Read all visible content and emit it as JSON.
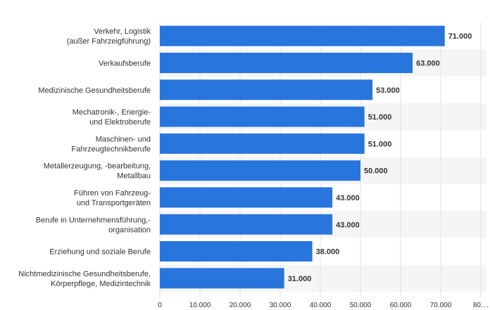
{
  "chart_data": {
    "type": "bar",
    "orientation": "horizontal",
    "title": "",
    "xlabel": "",
    "ylabel": "",
    "xlim": [
      0,
      80000
    ],
    "grid": true,
    "bar_color": "#2876dd",
    "stripe_color": "#f5f5f5",
    "grid_color": "#e2e2e2",
    "categories": [
      [
        "Verkehr, Logistik",
        "(außer Fahrzeigführung)"
      ],
      [
        "Verkaufsberufe"
      ],
      [
        "Medizinische Gesundheitsberufe"
      ],
      [
        "Mechatronik-, Energie-",
        "und Elektroberufe"
      ],
      [
        "Maschinen- und",
        "Fahrzeugtechnikberufe"
      ],
      [
        "Metallerzeugung, -bearbeitung,",
        "Metallbau"
      ],
      [
        "Führen von Fahrzeug-",
        "und Transportgeräten"
      ],
      [
        "Berufe in Unternehmensführung,-",
        "organisation"
      ],
      [
        "Erziehung und soziale Berufe"
      ],
      [
        "Nichtmedizinische Gesundheitsberufe,",
        "Körperpflege, Medizintechnik"
      ]
    ],
    "values": [
      71000,
      63000,
      53000,
      51000,
      51000,
      50000,
      43000,
      43000,
      38000,
      31000
    ],
    "value_labels": [
      "71.000",
      "63.000",
      "53.000",
      "51.000",
      "51.000",
      "50.000",
      "43.000",
      "43.000",
      "38.000",
      "31.000"
    ],
    "x_ticks": [
      0,
      10000,
      20000,
      30000,
      40000,
      50000,
      60000,
      70000,
      80000
    ],
    "x_tick_labels": [
      "0",
      "10.000",
      "20.000",
      "30.000",
      "40.000",
      "50.000",
      "60.000",
      "70.000",
      "80...."
    ]
  }
}
